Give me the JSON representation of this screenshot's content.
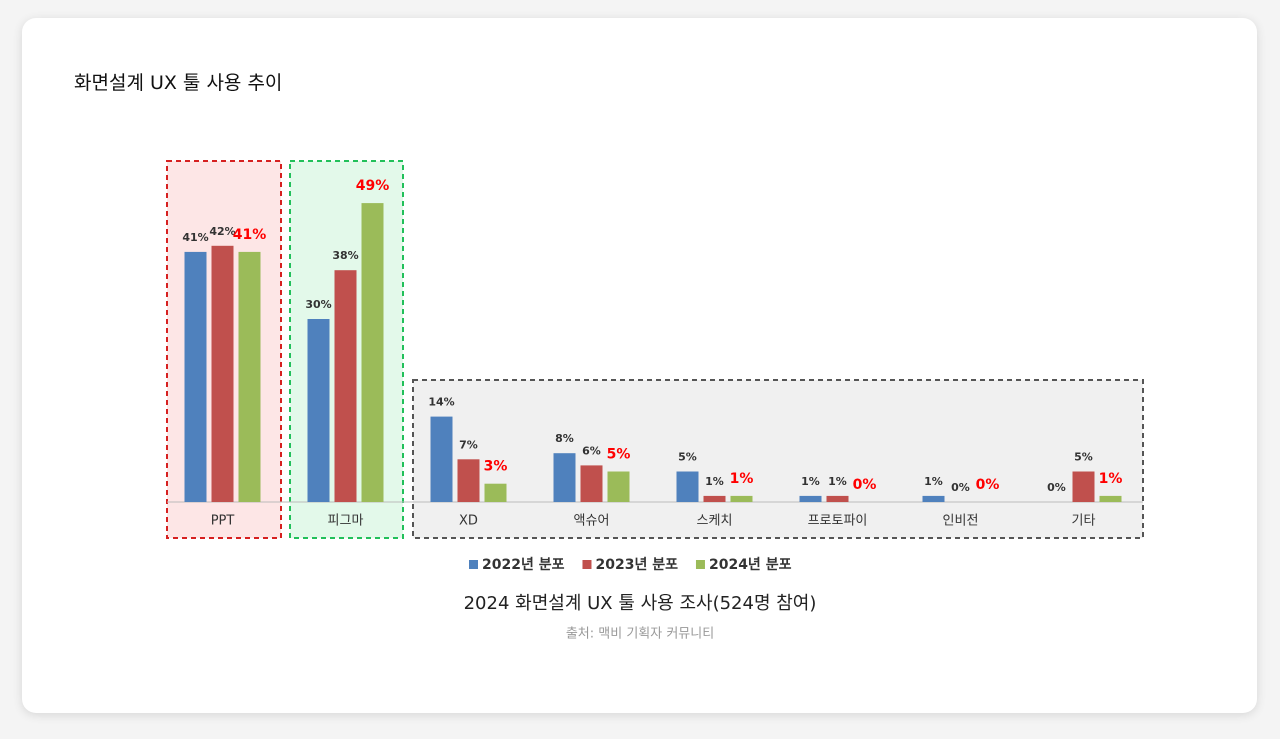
{
  "title": "화면설계 UX 툴 사용 추이",
  "chart_data": {
    "type": "bar",
    "categories": [
      "PPT",
      "피그마",
      "XD",
      "액슈어",
      "스케치",
      "프로토파이",
      "인비전",
      "기타"
    ],
    "series": [
      {
        "name": "2022년 분포",
        "color": "#4f81bd",
        "values": [
          41,
          30,
          14,
          8,
          5,
          1,
          1,
          0
        ],
        "value_labels": [
          "41%",
          "30%",
          "14%",
          "8%",
          "5%",
          "1%",
          "1%",
          "0%"
        ]
      },
      {
        "name": "2023년 분포",
        "color": "#c0504d",
        "values": [
          42,
          38,
          7,
          6,
          1,
          1,
          0,
          5
        ],
        "value_labels": [
          "42%",
          "38%",
          "7%",
          "6%",
          "1%",
          "1%",
          "0%",
          "5%"
        ]
      },
      {
        "name": "2024년 분포",
        "color": "#9bbb59",
        "values": [
          41,
          49,
          3,
          5,
          1,
          0,
          0,
          1
        ],
        "value_labels": [
          "41%",
          "49%",
          "3%",
          "5%",
          "1%",
          "0%",
          "0%",
          "1%"
        ]
      }
    ],
    "caption": "2024 화면설계 UX 툴 사용 조사(524명 참여)",
    "source": "출처: 맥비 기획자 커뮤니티"
  }
}
